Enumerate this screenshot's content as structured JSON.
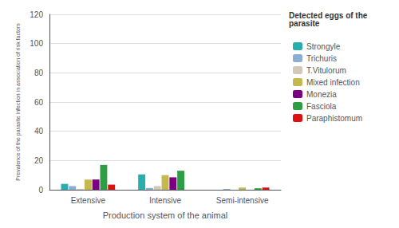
{
  "chart_data": {
    "type": "bar",
    "xlabel": "Production system of the animal",
    "ylabel": "Prevalence of the parasite infection in association of risk factors",
    "legend_title": "Detected eggs of the\nparasite",
    "categories": [
      "Extensive",
      "Intensive",
      "Semi-intensive"
    ],
    "series": [
      {
        "name": "Strongyle",
        "color": "#29AEAE",
        "values": [
          4.0,
          10.5,
          0.0
        ]
      },
      {
        "name": "Trichuris",
        "color": "#8BAED4",
        "values": [
          2.5,
          1.2,
          0.5
        ]
      },
      {
        "name": "T.Vitulorum",
        "color": "#D0C9B8",
        "values": [
          0.5,
          2.5,
          0.0
        ]
      },
      {
        "name": "Mixed infection",
        "color": "#C4B84E",
        "values": [
          7.0,
          10.0,
          1.5
        ]
      },
      {
        "name": "Monezia",
        "color": "#7B0081",
        "values": [
          7.0,
          8.5,
          0.0
        ]
      },
      {
        "name": "Fasciola",
        "color": "#2E9E44",
        "values": [
          17.0,
          13.0,
          1.0
        ]
      },
      {
        "name": "Paraphistomum",
        "color": "#DD1111",
        "values": [
          3.5,
          0.0,
          1.5
        ]
      }
    ],
    "ylim": [
      0,
      120
    ],
    "yticks": [
      0,
      20,
      40,
      60,
      80,
      100,
      120
    ],
    "grid": true,
    "legend": "right"
  }
}
